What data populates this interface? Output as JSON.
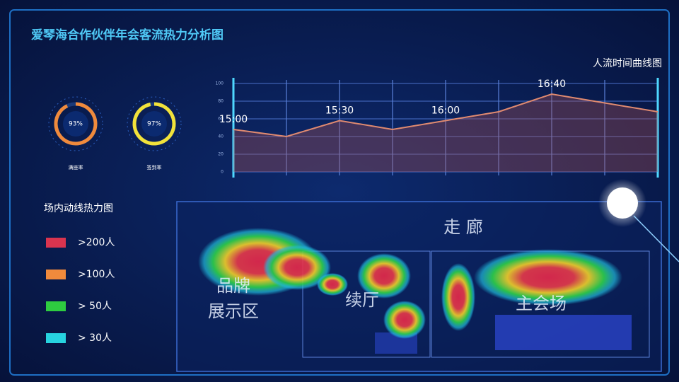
{
  "header": {
    "title": "爱琴海合作伙伴年会客流热力分析图"
  },
  "gauges": {
    "names": [
      "满座率",
      "签到率"
    ],
    "values": [
      93,
      97
    ],
    "value_labels": [
      "93%",
      "97%"
    ],
    "colors": [
      "#f08a3c",
      "#f2e23a"
    ],
    "max": 100
  },
  "chart_data": {
    "type": "line",
    "title": "人流时间曲线图",
    "categories": [
      "15:00",
      null,
      "15:30",
      null,
      "16:00",
      null,
      "16:40",
      null,
      null
    ],
    "values": [
      48,
      40,
      58,
      48,
      58,
      68,
      88,
      78,
      68
    ],
    "color": "#e08a70",
    "ylim": [
      0,
      100
    ],
    "yticks": [
      0,
      20,
      40,
      60,
      80,
      100
    ],
    "grid": true
  },
  "heatmap": {
    "title": "场内动线热力图",
    "legend": [
      {
        "label": ">200人",
        "color": "#d9344f"
      },
      {
        "label": ">100人",
        "color": "#f08a3c"
      },
      {
        "label": "> 50人",
        "color": "#2ecc40"
      },
      {
        "label": "> 30人",
        "color": "#27d3e0"
      }
    ],
    "zones": [
      {
        "lines": [
          "走 廊"
        ]
      },
      {
        "lines": [
          "品牌",
          "展示区"
        ]
      },
      {
        "lines": [
          "续厅"
        ]
      },
      {
        "lines": [
          "主会场"
        ]
      }
    ]
  }
}
